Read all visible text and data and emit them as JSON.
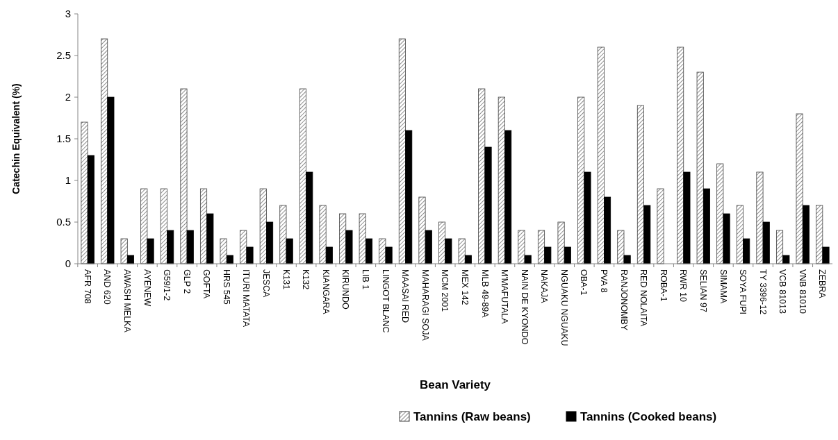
{
  "chart_data": {
    "type": "bar",
    "xlabel": "Bean Variety",
    "ylabel": "Catechin Equivalent (%)",
    "categories": [
      "AFR 708",
      "AND 620",
      "AWASH MELKA",
      "AYENEW",
      "G59/1-2",
      "GLP 2",
      "GOFTA",
      "HRS 545",
      "ITURI MATATA",
      "JESCA",
      "K131",
      "K132",
      "KIANGARA",
      "KIRUNDO",
      "LIB 1",
      "LINGOT BLANC",
      "MAASAI RED",
      "MAHARAGI SOJA",
      "MCM 2001",
      "MEX 142",
      "MLB 49-89A",
      "M'MAFUTALA",
      "NAIN DE KYONDO",
      "NAKAJA",
      "NGUAKU NGUAKU",
      "OBA-1",
      "PVA 8",
      "RANJONOMBY",
      "RED NOLAITA",
      "ROBA-1",
      "RWR 10",
      "SELIAN 97",
      "SIMAMA",
      "SOYA FUPI",
      "TY 3396-12",
      "VCB 81013",
      "VNB 81010",
      "ZEBRA"
    ],
    "series": [
      {
        "name": "Tannins (Raw beans)",
        "color": "#404040",
        "values": [
          1.7,
          2.7,
          0.3,
          0.9,
          0.9,
          2.1,
          0.9,
          0.3,
          0.4,
          0.9,
          0.7,
          2.1,
          0.7,
          0.6,
          0.6,
          0.3,
          2.7,
          0.8,
          0.5,
          0.3,
          2.1,
          2.0,
          0.4,
          0.4,
          0.5,
          2.0,
          2.6,
          0.4,
          1.9,
          0.9,
          2.6,
          2.3,
          1.2,
          0.7,
          1.1,
          0.4,
          1.8,
          0.7
        ]
      },
      {
        "name": "Tannins (Cooked beans)",
        "color": "#000000",
        "values": [
          1.3,
          2.0,
          0.1,
          0.3,
          0.4,
          0.4,
          0.6,
          0.1,
          0.2,
          0.5,
          0.3,
          1.1,
          0.2,
          0.4,
          0.3,
          0.2,
          1.6,
          0.4,
          0.3,
          0.1,
          1.4,
          1.6,
          0.1,
          0.2,
          0.2,
          1.1,
          0.8,
          0.1,
          0.7,
          0,
          1.1,
          0.9,
          0.6,
          0.3,
          0.5,
          0.1,
          0.7,
          0.2
        ]
      }
    ],
    "ylim": [
      0,
      3
    ],
    "yticks": [
      0,
      0.5,
      1,
      1.5,
      2,
      2.5,
      3
    ],
    "grid": false,
    "legend": "bottom"
  }
}
